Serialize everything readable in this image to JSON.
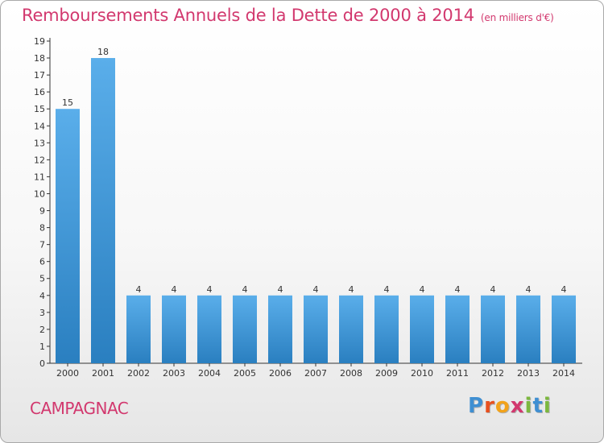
{
  "title": "Remboursements Annuels de la Dette de 2000 à 2014",
  "unit": "(en milliers d'€)",
  "commune": "CAMPAGNAC",
  "logo": {
    "letters": [
      "P",
      "r",
      "o",
      "x",
      "i",
      "t",
      "i"
    ],
    "colors": [
      "#3f8fd2",
      "#e8501e",
      "#f2a31b",
      "#d2386e",
      "#7cb83e",
      "#3f8fd2",
      "#7cb83e"
    ]
  },
  "colors": {
    "accent": "#d2386e",
    "bar_top": "#5aaeea",
    "bar_bottom": "#2a7fc0"
  },
  "chart_data": {
    "type": "bar",
    "categories": [
      "2000",
      "2001",
      "2002",
      "2003",
      "2004",
      "2005",
      "2006",
      "2007",
      "2008",
      "2009",
      "2010",
      "2011",
      "2012",
      "2013",
      "2014"
    ],
    "values": [
      15,
      18,
      4,
      4,
      4,
      4,
      4,
      4,
      4,
      4,
      4,
      4,
      4,
      4,
      4
    ],
    "data_labels": [
      "15",
      "18",
      "4",
      "4",
      "4",
      "4",
      "4",
      "4",
      "4",
      "4",
      "4",
      "4",
      "4",
      "4",
      "4"
    ],
    "yticks": [
      "0",
      "1",
      "2",
      "3",
      "4",
      "5",
      "6",
      "7",
      "8",
      "9",
      "10",
      "11",
      "12",
      "13",
      "14",
      "15",
      "16",
      "17",
      "18",
      "19"
    ],
    "ylim": [
      0,
      19
    ],
    "grid": false,
    "legend": "none"
  }
}
